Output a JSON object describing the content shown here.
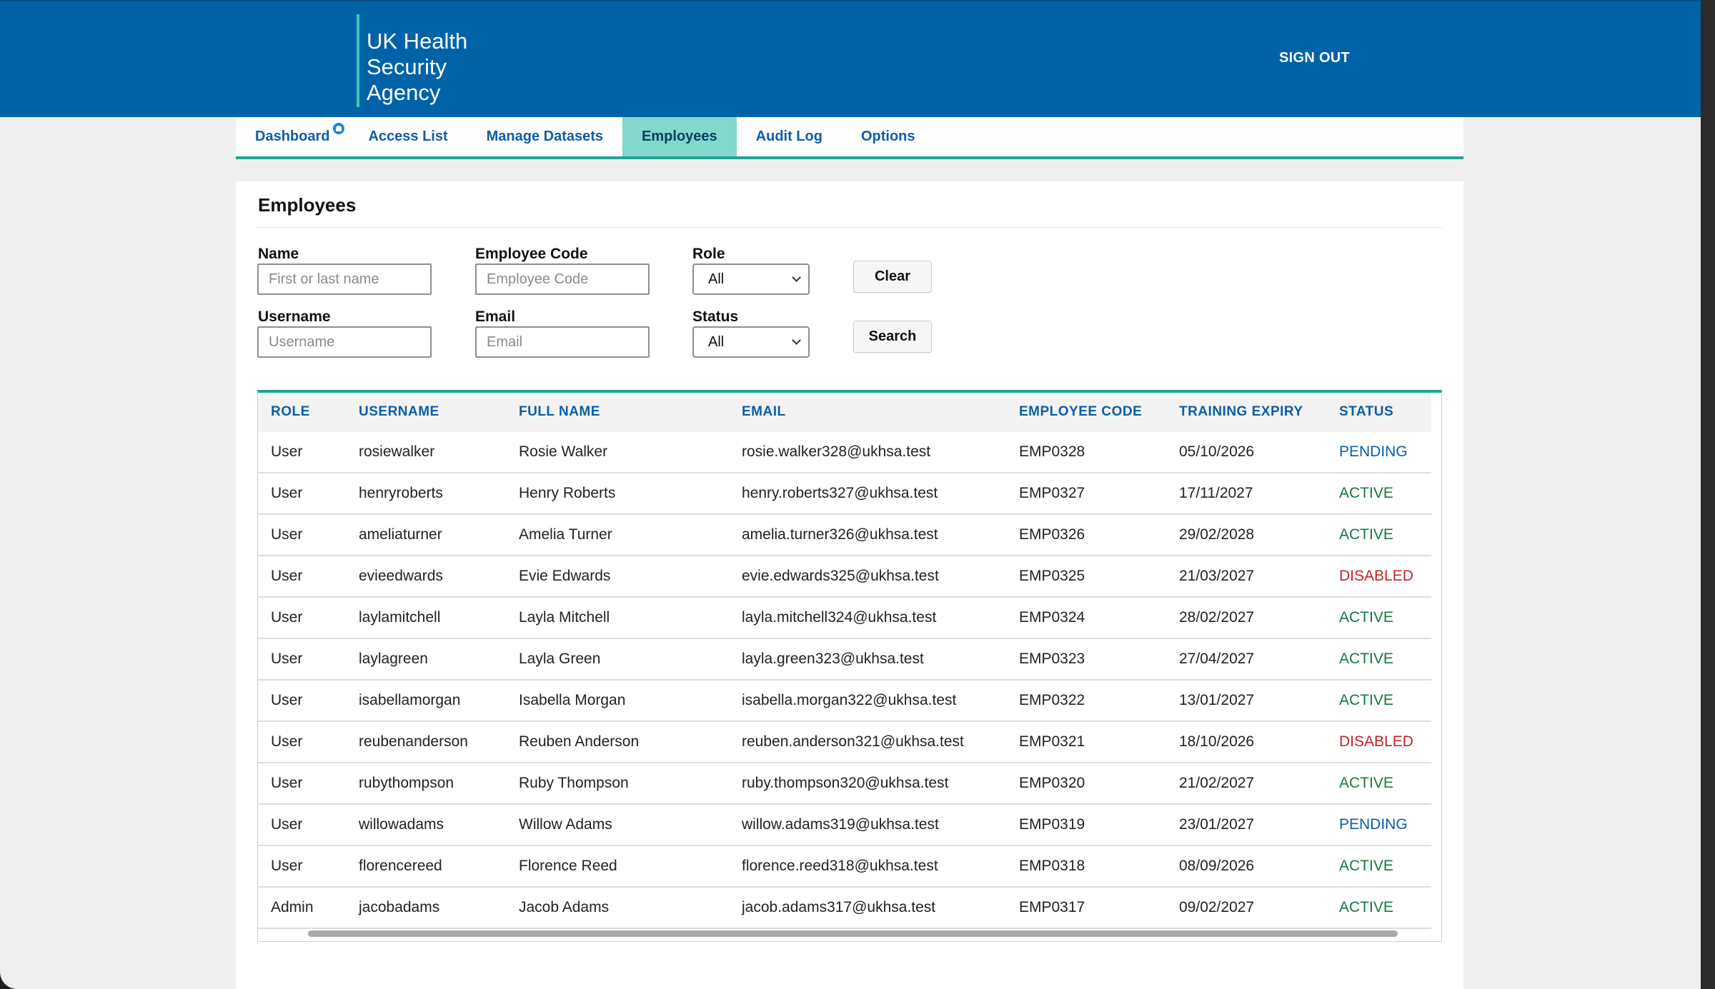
{
  "header": {
    "logo_lines": [
      "UK Health",
      "Security",
      "Agency"
    ],
    "sign_out": "SIGN OUT"
  },
  "nav": {
    "tabs": [
      {
        "label": "Dashboard",
        "has_notification": true
      },
      {
        "label": "Access List"
      },
      {
        "label": "Manage Datasets"
      },
      {
        "label": "Employees",
        "active": true
      },
      {
        "label": "Audit Log"
      },
      {
        "label": "Options"
      }
    ]
  },
  "page": {
    "title": "Employees"
  },
  "filters": {
    "name": {
      "label": "Name",
      "placeholder": "First or last name",
      "value": ""
    },
    "employee_code": {
      "label": "Employee Code",
      "placeholder": "Employee Code",
      "value": ""
    },
    "role": {
      "label": "Role",
      "selected": "All"
    },
    "username": {
      "label": "Username",
      "placeholder": "Username",
      "value": ""
    },
    "email": {
      "label": "Email",
      "placeholder": "Email",
      "value": ""
    },
    "status": {
      "label": "Status",
      "selected": "All"
    },
    "clear_label": "Clear",
    "search_label": "Search"
  },
  "table": {
    "columns": [
      "ROLE",
      "USERNAME",
      "FULL NAME",
      "EMAIL",
      "EMPLOYEE CODE",
      "TRAINING EXPIRY",
      "STATUS"
    ],
    "rows": [
      [
        "User",
        "rosiewalker",
        "Rosie Walker",
        "rosie.walker328@ukhsa.test",
        "EMP0328",
        "05/10/2026",
        "PENDING"
      ],
      [
        "User",
        "henryroberts",
        "Henry Roberts",
        "henry.roberts327@ukhsa.test",
        "EMP0327",
        "17/11/2027",
        "ACTIVE"
      ],
      [
        "User",
        "ameliaturner",
        "Amelia Turner",
        "amelia.turner326@ukhsa.test",
        "EMP0326",
        "29/02/2028",
        "ACTIVE"
      ],
      [
        "User",
        "evieedwards",
        "Evie Edwards",
        "evie.edwards325@ukhsa.test",
        "EMP0325",
        "21/03/2027",
        "DISABLED"
      ],
      [
        "User",
        "laylamitchell",
        "Layla Mitchell",
        "layla.mitchell324@ukhsa.test",
        "EMP0324",
        "28/02/2027",
        "ACTIVE"
      ],
      [
        "User",
        "laylagreen",
        "Layla Green",
        "layla.green323@ukhsa.test",
        "EMP0323",
        "27/04/2027",
        "ACTIVE"
      ],
      [
        "User",
        "isabellamorgan",
        "Isabella Morgan",
        "isabella.morgan322@ukhsa.test",
        "EMP0322",
        "13/01/2027",
        "ACTIVE"
      ],
      [
        "User",
        "reubenanderson",
        "Reuben Anderson",
        "reuben.anderson321@ukhsa.test",
        "EMP0321",
        "18/10/2026",
        "DISABLED"
      ],
      [
        "User",
        "rubythompson",
        "Ruby Thompson",
        "ruby.thompson320@ukhsa.test",
        "EMP0320",
        "21/02/2027",
        "ACTIVE"
      ],
      [
        "User",
        "willowadams",
        "Willow Adams",
        "willow.adams319@ukhsa.test",
        "EMP0319",
        "23/01/2027",
        "PENDING"
      ],
      [
        "User",
        "florencereed",
        "Florence Reed",
        "florence.reed318@ukhsa.test",
        "EMP0318",
        "08/09/2026",
        "ACTIVE"
      ],
      [
        "Admin",
        "jacobadams",
        "Jacob Adams",
        "jacob.adams317@ukhsa.test",
        "EMP0317",
        "09/02/2027",
        "ACTIVE"
      ]
    ]
  },
  "colors": {
    "brand_blue": "#0063a7",
    "accent_teal": "#1ba58f",
    "active_tab": "#82d8cb",
    "status_active": "#137a3e",
    "status_pending": "#0b5ea8",
    "status_disabled": "#c8232c"
  }
}
